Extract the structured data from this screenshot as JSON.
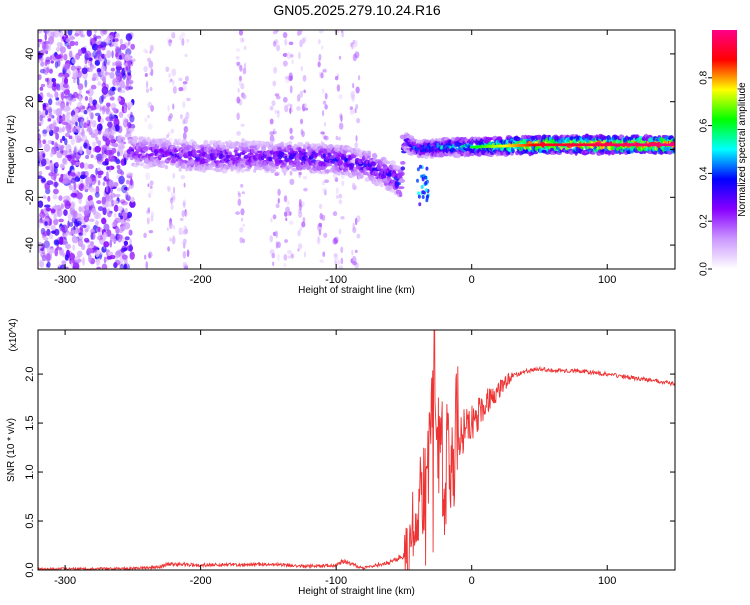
{
  "title": "GN05.2025.279.10.24.R16",
  "chart_data": [
    {
      "type": "heatmap",
      "xlabel": "Height of straight line (km)",
      "ylabel": "Frequency (Hz)",
      "xlim": [
        -320,
        150
      ],
      "ylim": [
        -50,
        50
      ],
      "x_ticks": [
        -300,
        -200,
        -100,
        0,
        100
      ],
      "y_ticks": [
        -40,
        -20,
        0,
        20,
        40
      ],
      "colorbar": {
        "label": "Normalized spectral amplitude",
        "range": [
          0,
          1
        ],
        "ticks": [
          0.0,
          0.2,
          0.4,
          0.6,
          0.8
        ],
        "colormap": [
          "#ffffff",
          "#cc99ff",
          "#8800ff",
          "#0000ff",
          "#00ffff",
          "#00ff00",
          "#ffff00",
          "#ff0000",
          "#ff0088"
        ]
      },
      "ridge": {
        "x": [
          -250,
          -200,
          -150,
          -100,
          -75,
          -60,
          -52,
          -50,
          -40,
          -20,
          0,
          50,
          100,
          150
        ],
        "frequency": [
          -1,
          -3,
          -3,
          -4,
          -7,
          -11,
          -14,
          4,
          0,
          1,
          1,
          2,
          2,
          2
        ],
        "amplitude": [
          0.25,
          0.3,
          0.3,
          0.35,
          0.3,
          0.35,
          0.4,
          0.35,
          0.4,
          0.5,
          0.6,
          0.9,
          0.95,
          1.0
        ]
      },
      "noise_region_x": [
        -320,
        -250
      ]
    },
    {
      "type": "line",
      "xlabel": "Height of straight line (km)",
      "ylabel": "SNR (10 * v/v)",
      "y_multiplier": "(x10^4)",
      "xlim": [
        -320,
        150
      ],
      "ylim": [
        0,
        2.45
      ],
      "x_ticks": [
        -300,
        -200,
        -100,
        0,
        100
      ],
      "y_ticks": [
        0.0,
        0.5,
        1.0,
        1.5,
        2.0
      ],
      "color": "#ee3333",
      "x": [
        -320,
        -250,
        -230,
        -225,
        -200,
        -150,
        -120,
        -100,
        -95,
        -80,
        -60,
        -50,
        -45,
        -40,
        -35,
        -30,
        -28,
        -25,
        -20,
        -15,
        -10,
        0,
        10,
        20,
        30,
        40,
        50,
        60,
        80,
        100,
        120,
        150
      ],
      "y": [
        0.01,
        0.015,
        0.03,
        0.06,
        0.05,
        0.06,
        0.04,
        0.05,
        0.09,
        0.02,
        0.08,
        0.15,
        0.3,
        0.6,
        0.9,
        1.2,
        2.4,
        1.3,
        1.0,
        1.2,
        1.35,
        1.5,
        1.7,
        1.85,
        1.98,
        2.03,
        2.05,
        2.04,
        2.03,
        2.0,
        1.96,
        1.9
      ]
    }
  ]
}
